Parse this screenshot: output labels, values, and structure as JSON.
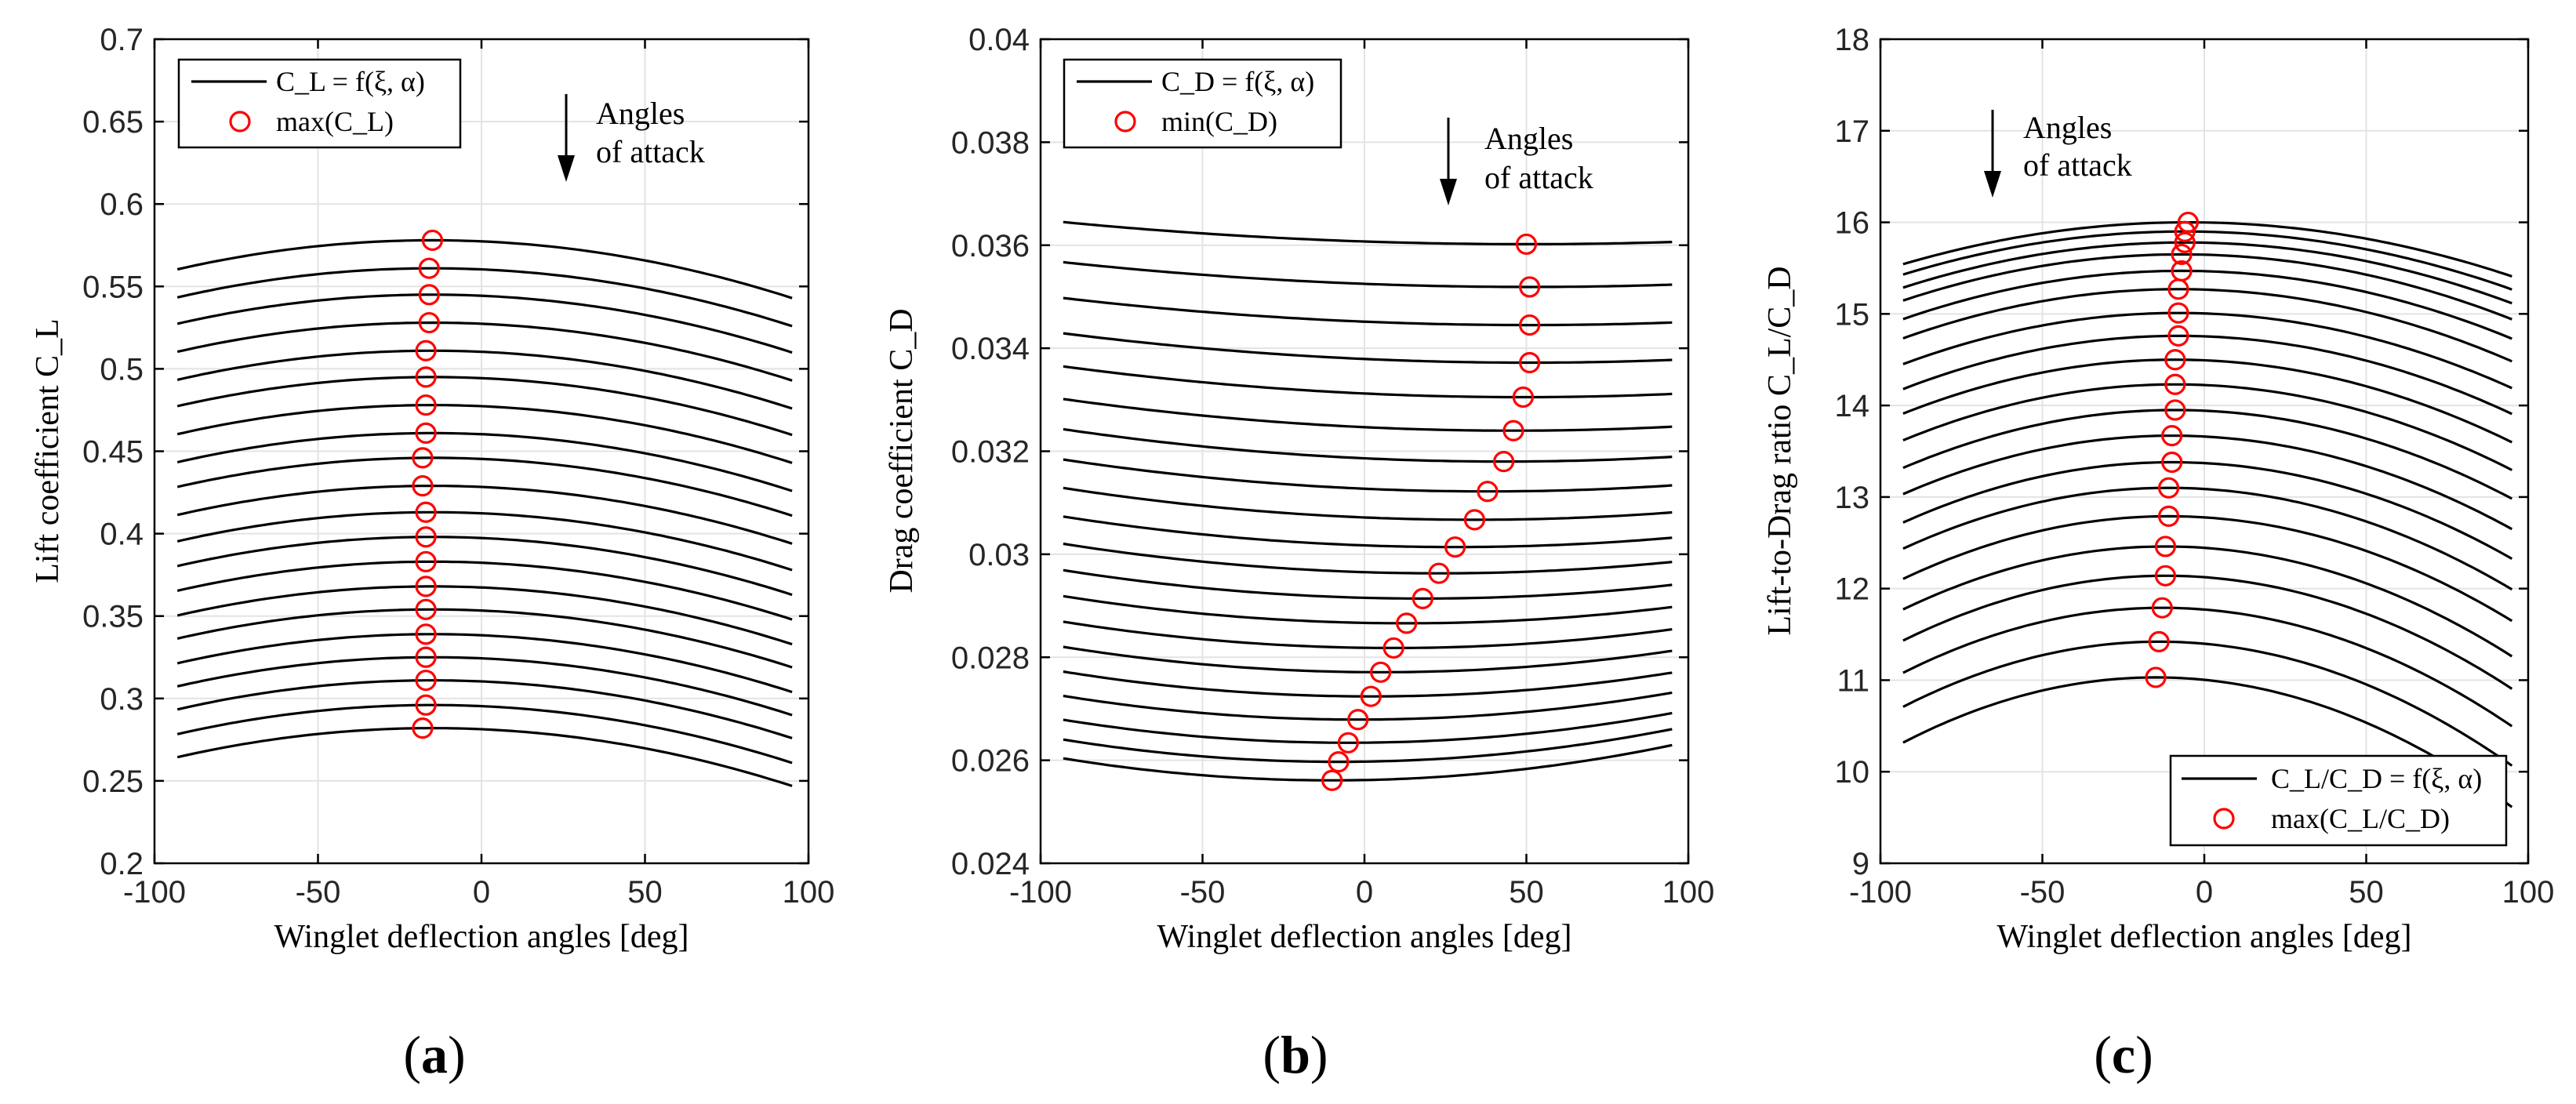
{
  "chart_data": [
    {
      "panel": "(a)",
      "panel_letter": "a",
      "type": "line",
      "xlabel": "Winglet deflection angles [deg]",
      "ylabel": "Lift coefficient C_L",
      "xlim": [
        -100,
        100
      ],
      "ylim": [
        0.2,
        0.7
      ],
      "xticks": [
        "-100",
        "-50",
        "0",
        "50",
        "100"
      ],
      "yticks": [
        "0.2",
        "0.25",
        "0.3",
        "0.35",
        "0.4",
        "0.45",
        "0.5",
        "0.55",
        "0.6",
        "0.65",
        "0.7"
      ],
      "legend": [
        "C_L = f(ξ, α)",
        "max(C_L)"
      ],
      "legend_location": "top-left",
      "annotation": [
        "Angles",
        "of attack"
      ],
      "x_range": [
        -93,
        95
      ],
      "series_peak_x": -15,
      "series_curvature": 2.9e-06,
      "series_peaks": [
        0.578,
        0.561,
        0.545,
        0.528,
        0.511,
        0.495,
        0.478,
        0.461,
        0.446,
        0.429,
        0.413,
        0.398,
        0.383,
        0.368,
        0.354,
        0.339,
        0.325,
        0.311,
        0.296,
        0.282
      ],
      "markers": {
        "x": [
          -15,
          -16,
          -16,
          -16,
          -17,
          -17,
          -17,
          -17,
          -18,
          -18,
          -17,
          -17,
          -17,
          -17,
          -17,
          -17,
          -17,
          -17,
          -17,
          -18
        ],
        "y": [
          0.578,
          0.561,
          0.545,
          0.528,
          0.511,
          0.495,
          0.478,
          0.461,
          0.446,
          0.429,
          0.413,
          0.398,
          0.383,
          0.368,
          0.354,
          0.339,
          0.325,
          0.311,
          0.296,
          0.282
        ]
      }
    },
    {
      "panel": "(b)",
      "panel_letter": "b",
      "type": "line",
      "xlabel": "Winglet deflection angles [deg]",
      "ylabel": "Drag coefficient C_D",
      "xlim": [
        -100,
        100
      ],
      "ylim": [
        0.024,
        0.04
      ],
      "xticks": [
        "-100",
        "-50",
        "0",
        "50",
        "100"
      ],
      "yticks": [
        "0.024",
        "0.026",
        "0.028",
        "0.03",
        "0.032",
        "0.034",
        "0.036",
        "0.038",
        "0.04"
      ],
      "legend": [
        "C_D = f(ξ, α)",
        "min(C_D)"
      ],
      "legend_location": "top-left",
      "annotation": [
        "Angles",
        "of attack"
      ],
      "x_range": [
        -93,
        95
      ],
      "series_curvature_first": 2.1e-08,
      "series_curvature_last": 6.2e-08,
      "markers": {
        "x": [
          50,
          51,
          51,
          51,
          49,
          46,
          43,
          38,
          34,
          28,
          23,
          18,
          13,
          9,
          5,
          2,
          -2,
          -5,
          -8,
          -10
        ],
        "y": [
          0.03602,
          0.03519,
          0.03445,
          0.03372,
          0.03305,
          0.0324,
          0.0318,
          0.03122,
          0.03067,
          0.03014,
          0.02963,
          0.02914,
          0.02866,
          0.02818,
          0.02771,
          0.02724,
          0.02679,
          0.02634,
          0.02597,
          0.02561
        ]
      }
    },
    {
      "panel": "(c)",
      "panel_letter": "c",
      "type": "line",
      "xlabel": "Winglet deflection angles [deg]",
      "ylabel": "Lift-to-Drag ratio C_L/C_D",
      "xlim": [
        -100,
        100
      ],
      "ylim": [
        9,
        18
      ],
      "xticks": [
        "-100",
        "-50",
        "0",
        "50",
        "100"
      ],
      "yticks": [
        "9",
        "10",
        "11",
        "12",
        "13",
        "14",
        "15",
        "16",
        "17",
        "18"
      ],
      "legend": [
        "C_L/C_D = f(ξ, α)",
        "max(C_L/C_D)"
      ],
      "legend_location": "bottom-right",
      "annotation": [
        "Angles",
        "of attack"
      ],
      "x_range": [
        -93,
        95
      ],
      "series_curvature_first": 5.9e-05,
      "series_curvature_last": 0.000117,
      "markers": {
        "x": [
          -5,
          -6,
          -6,
          -7,
          -7,
          -8,
          -8,
          -8,
          -9,
          -9,
          -9,
          -10,
          -10,
          -11,
          -11,
          -12,
          -12,
          -13,
          -14,
          -15
        ],
        "y": [
          16.0,
          15.9,
          15.78,
          15.65,
          15.47,
          15.27,
          15.01,
          14.76,
          14.5,
          14.23,
          13.95,
          13.67,
          13.38,
          13.1,
          12.79,
          12.46,
          12.14,
          11.79,
          11.42,
          11.03
        ]
      }
    }
  ]
}
